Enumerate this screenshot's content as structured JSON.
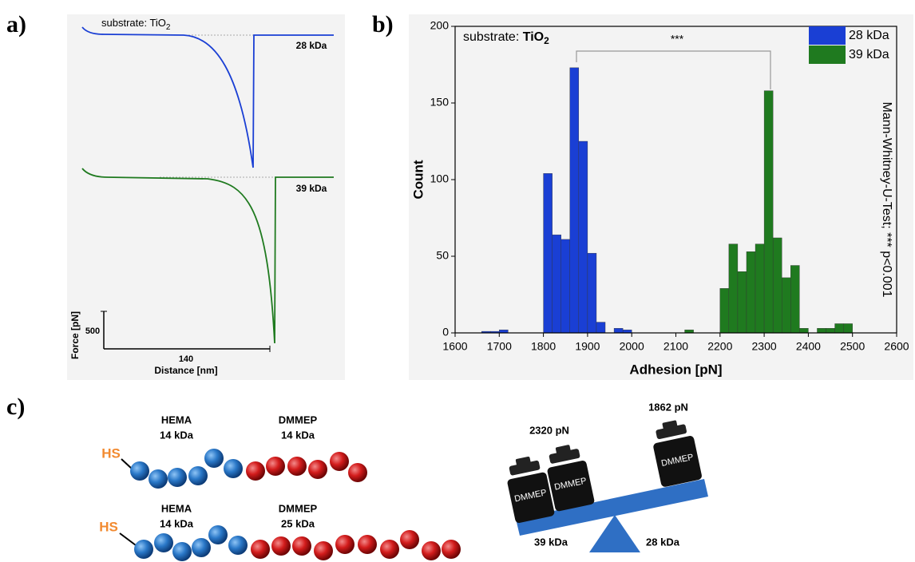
{
  "panel_labels": [
    "a)",
    "b)",
    "c)"
  ],
  "panel_a": {
    "annotation": {
      "text": "substrate: TiO",
      "subscript": "2"
    },
    "curves": [
      "28 kDa",
      "39 kDa"
    ],
    "scale_bar": {
      "y_label": "Force [pN]",
      "y_value": 500,
      "x_label": "Distance [nm]",
      "x_value": 140
    }
  },
  "chart_data": {
    "type": "histogram",
    "xlabel": "Adhesion [pN]",
    "ylabel": "Count",
    "xlim": [
      1600,
      2600
    ],
    "ylim": [
      0,
      200
    ],
    "xticks": [
      1600,
      1700,
      1800,
      1900,
      2000,
      2100,
      2200,
      2300,
      2400,
      2500,
      2600
    ],
    "yticks": [
      0,
      50,
      100,
      150,
      200
    ],
    "legend": "upper right",
    "annotation": {
      "text": "substrate: ",
      "chem": "TiO",
      "subscript": "2"
    },
    "significance": "***",
    "test_note": "Mann-Whitney-U-Test; *** p<0.001",
    "bins": [
      1660,
      1680,
      1700,
      1720,
      1740,
      1760,
      1780,
      1800,
      1820,
      1840,
      1860,
      1880,
      1900,
      1920,
      1940,
      1960,
      1980,
      2000,
      2020,
      2040,
      2060,
      2080,
      2100,
      2120,
      2140,
      2160,
      2180,
      2200,
      2220,
      2240,
      2260,
      2280,
      2300,
      2320,
      2340,
      2360,
      2380,
      2400,
      2420,
      2440,
      2460,
      2480,
      2500
    ],
    "series": [
      {
        "name": "28 kDa",
        "color": "#1a3fd4",
        "values": [
          1,
          1,
          2,
          0,
          0,
          0,
          0,
          104,
          64,
          61,
          173,
          125,
          52,
          7,
          0,
          3,
          2,
          0,
          0,
          0,
          0,
          0,
          0,
          0,
          0,
          0,
          0,
          0,
          0,
          0,
          0,
          0,
          0,
          0,
          0,
          0,
          0,
          0,
          0,
          0,
          0,
          0
        ]
      },
      {
        "name": "39 kDa",
        "color": "#1f7a1f",
        "values": [
          0,
          0,
          0,
          0,
          0,
          0,
          0,
          0,
          0,
          0,
          0,
          0,
          0,
          0,
          0,
          0,
          0,
          0,
          0,
          0,
          0,
          0,
          0,
          2,
          0,
          0,
          0,
          29,
          58,
          40,
          53,
          58,
          158,
          62,
          36,
          44,
          3,
          0,
          3,
          3,
          6,
          6
        ]
      }
    ]
  },
  "panel_c": {
    "chains": [
      {
        "end_group": "HS",
        "block1": {
          "name": "HEMA",
          "mass": "14 kDa"
        },
        "block2": {
          "name": "DMMEP",
          "mass": "14 kDa"
        }
      },
      {
        "end_group": "HS",
        "block1": {
          "name": "HEMA",
          "mass": "14 kDa"
        },
        "block2": {
          "name": "DMMEP",
          "mass": "25 kDa"
        }
      }
    ],
    "balance": {
      "left_force": "2320 pN",
      "right_force": "1862 pN",
      "weights": [
        "DMMEP",
        "DMMEP",
        "DMMEP"
      ],
      "left_label": "39 kDa",
      "right_label": "28 kDa"
    }
  }
}
